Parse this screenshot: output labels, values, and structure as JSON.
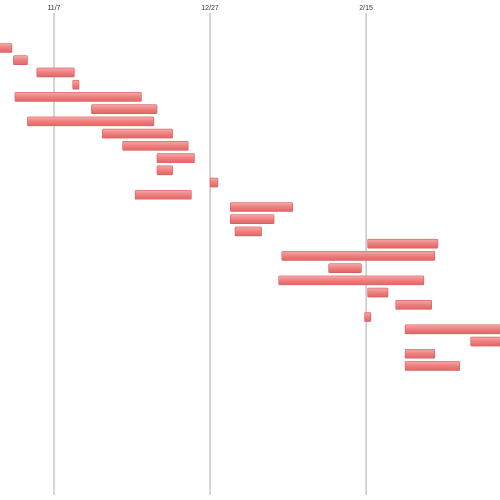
{
  "chart_data": {
    "type": "gantt",
    "categories": [
      null,
      null,
      null,
      null,
      null,
      null,
      null,
      null,
      null,
      null,
      null,
      null,
      null,
      null,
      null,
      null,
      null,
      null,
      null,
      null,
      null,
      null,
      null,
      null,
      null,
      null,
      null
    ],
    "start": [
      -17.5,
      -13,
      -5.5,
      6,
      -12.5,
      12,
      -8.5,
      15.5,
      22,
      33,
      33,
      50,
      26,
      56.5,
      56.5,
      58,
      100.5,
      73,
      88,
      72,
      100.5,
      109.5,
      99.5,
      112.5,
      133.5,
      112.5,
      112.5
    ],
    "end": [
      -13.5,
      -8.5,
      6.5,
      8,
      28,
      33,
      32,
      38,
      43,
      45,
      38,
      52.5,
      44,
      76.5,
      70.5,
      66.5,
      123,
      122,
      98.5,
      118.5,
      107,
      121,
      101.5,
      145,
      145,
      122,
      130
    ],
    "color": "#ee7f7f",
    "xlim": [
      -17.3,
      142.9
    ],
    "xticks": [
      {
        "value": 0,
        "label": "11/7"
      },
      {
        "value": 50,
        "label": "12/27"
      },
      {
        "value": 100,
        "label": "2/15"
      }
    ],
    "grid": true
  }
}
